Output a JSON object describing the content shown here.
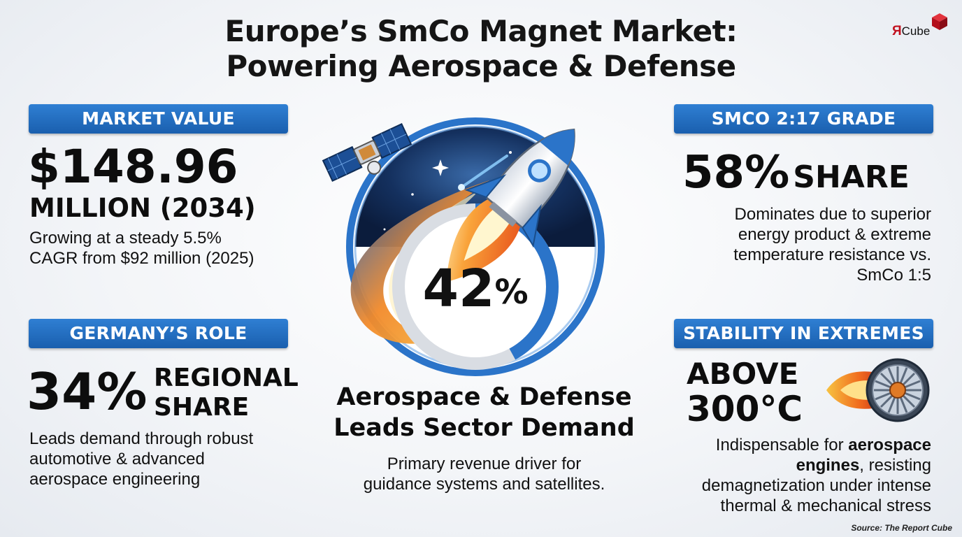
{
  "title": {
    "line1": "Europe’s SmCo Magnet Market:",
    "line2": "Powering Aerospace & Defense"
  },
  "logo": {
    "r_glyph": "Я",
    "text": "Cube"
  },
  "market_value": {
    "banner": "MARKET VALUE",
    "value": "$148.96",
    "value_unit": "MILLION (2034)",
    "desc_line1": "Growing at a steady 5.5%",
    "desc_line2": "CAGR from $92 million (2025)"
  },
  "germany": {
    "banner": "GERMANY’S ROLE",
    "percent": "34%",
    "label_line1": "REGIONAL",
    "label_line2": "SHARE",
    "desc_line1": "Leads demand through robust",
    "desc_line2": "automotive & advanced",
    "desc_line3": "aerospace engineering"
  },
  "center": {
    "percent": "42",
    "percent_sign": "%",
    "ring_fill_fraction": 0.42,
    "heading_line1": "Aerospace & Defense",
    "heading_line2": "Leads Sector Demand",
    "desc_line1": "Primary revenue driver for",
    "desc_line2": "guidance systems and satellites."
  },
  "grade": {
    "banner": "SMCO 2:17 GRADE",
    "percent": "58%",
    "label": "SHARE",
    "desc_line1": "Dominates due to superior",
    "desc_line2": "energy product & extreme",
    "desc_line3": "temperature resistance vs.",
    "desc_line4": "SmCo 1:5"
  },
  "stability": {
    "banner": "STABILITY IN EXTREMES",
    "line1": "ABOVE",
    "line2": "300°C",
    "desc_line1_pre": "Indispensable for ",
    "desc_line1_bold": "aerospace",
    "desc_line2_bold": "engines",
    "desc_line2_post": ", resisting",
    "desc_line3": "demagnetization under intense",
    "desc_line4": "thermal & mechanical stress"
  },
  "source": "Source: The Report Cube",
  "colors": {
    "banner_blue": "#1f6cc0",
    "ring_blue": "#2b74c9",
    "flame_orange": "#f07a22",
    "logo_red": "#c1121f"
  },
  "icons": [
    "satellite-icon",
    "rocket-icon",
    "jet-engine-icon",
    "cube-logo-icon"
  ]
}
